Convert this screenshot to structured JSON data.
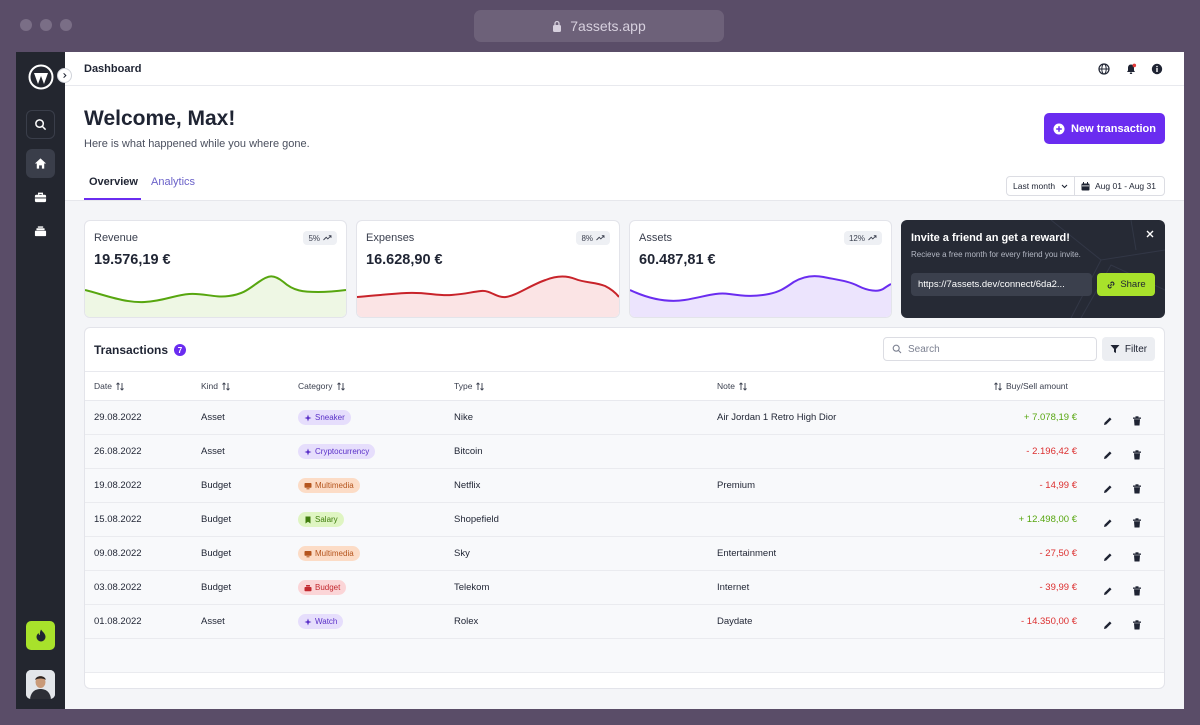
{
  "browser": {
    "url": "7assets.app"
  },
  "topbar": {
    "title": "Dashboard"
  },
  "header": {
    "welcome": "Welcome, Max!",
    "subtitle": "Here is what happened while you where gone.",
    "new_button": "New transaction",
    "tabs": [
      {
        "label": "Overview",
        "active": true
      },
      {
        "label": "Analytics",
        "active": false
      }
    ],
    "period": "Last month",
    "date_range": "Aug 01 - Aug 31"
  },
  "cards": [
    {
      "label": "Revenue",
      "value": "19.576,19 €",
      "badge": "5%",
      "color": "#57a60f",
      "fill": "#eef7e4"
    },
    {
      "label": "Expenses",
      "value": "16.628,90 €",
      "badge": "8%",
      "color": "#c8232a",
      "fill": "#fbe4e5"
    },
    {
      "label": "Assets",
      "value": "60.487,81 €",
      "badge": "12%",
      "color": "#6a2cf0",
      "fill": "#ece4fd"
    }
  ],
  "invite": {
    "title": "Invite a friend an get a reward!",
    "subtitle": "Recieve a free month for every friend you invite.",
    "link": "https://7assets.dev/connect/6da2...",
    "share": "Share"
  },
  "transactions": {
    "title": "Transactions",
    "count": "7",
    "search_placeholder": "Search",
    "filter_label": "Filter",
    "columns": {
      "date": "Date",
      "kind": "Kind",
      "category": "Category",
      "type": "Type",
      "note": "Note",
      "amount": "Buy/Sell amount"
    },
    "rows": [
      {
        "date": "29.08.2022",
        "kind": "Asset",
        "category": "Sneaker",
        "cat_style": "purple",
        "type": "Nike",
        "note": "Air Jordan 1 Retro High Dior",
        "amount": "+ 7.078,19 €",
        "sign": "pos"
      },
      {
        "date": "26.08.2022",
        "kind": "Asset",
        "category": "Cryptocurrency",
        "cat_style": "purple",
        "type": "Bitcoin",
        "note": "",
        "amount": "- 2.196,42 €",
        "sign": "neg"
      },
      {
        "date": "19.08.2022",
        "kind": "Budget",
        "category": "Multimedia",
        "cat_style": "orange",
        "type": "Netflix",
        "note": "Premium",
        "amount": "- 14,99 €",
        "sign": "neg"
      },
      {
        "date": "15.08.2022",
        "kind": "Budget",
        "category": "Salary",
        "cat_style": "green",
        "type": "Shopefield",
        "note": "",
        "amount": "+ 12.498,00 €",
        "sign": "pos"
      },
      {
        "date": "09.08.2022",
        "kind": "Budget",
        "category": "Multimedia",
        "cat_style": "orange",
        "type": "Sky",
        "note": "Entertainment",
        "amount": "- 27,50 €",
        "sign": "neg"
      },
      {
        "date": "03.08.2022",
        "kind": "Budget",
        "category": "Budget",
        "cat_style": "red",
        "type": "Telekom",
        "note": "Internet",
        "amount": "- 39,99 €",
        "sign": "neg"
      },
      {
        "date": "01.08.2022",
        "kind": "Asset",
        "category": "Watch",
        "cat_style": "purple",
        "type": "Rolex",
        "note": "Daydate",
        "amount": "- 14.350,00 €",
        "sign": "neg"
      }
    ]
  },
  "colors": {
    "accent": "#6a2cf0",
    "lime": "#a8e22b",
    "positive": "#57a60f",
    "negative": "#dc2f2f"
  }
}
